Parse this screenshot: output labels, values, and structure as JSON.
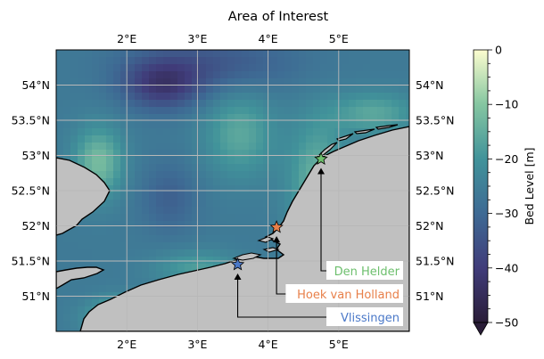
{
  "title": "Area of Interest",
  "lon_ticks": [
    {
      "v": 2,
      "label": "2°E"
    },
    {
      "v": 3,
      "label": "3°E"
    },
    {
      "v": 4,
      "label": "4°E"
    },
    {
      "v": 5,
      "label": "5°E"
    }
  ],
  "lat_ticks": [
    {
      "v": 51,
      "label": "51°N"
    },
    {
      "v": 51.5,
      "label": "51.5°N"
    },
    {
      "v": 52,
      "label": "52°N"
    },
    {
      "v": 52.5,
      "label": "52.5°N"
    },
    {
      "v": 53,
      "label": "53°N"
    },
    {
      "v": 53.5,
      "label": "53.5°N"
    },
    {
      "v": 54,
      "label": "54°N"
    }
  ],
  "colorbar": {
    "label": "Bed Level [m]",
    "ticks": [
      {
        "v": 0,
        "label": "0"
      },
      {
        "v": -10,
        "label": "−10"
      },
      {
        "v": -20,
        "label": "−20"
      },
      {
        "v": -30,
        "label": "−30"
      },
      {
        "v": -40,
        "label": "−40"
      },
      {
        "v": -50,
        "label": "−50"
      }
    ],
    "range": [
      -50,
      0
    ],
    "extend": "min"
  },
  "chart_data": {
    "type": "heatmap",
    "title": "Area of Interest",
    "xlim": [
      1.0,
      6.0
    ],
    "ylim": [
      50.5,
      54.5
    ],
    "grid": true,
    "land_color": "#c0c0c0",
    "locations": [
      {
        "name": "Den Helder",
        "lon": 4.75,
        "lat": 52.95,
        "color": "#6dbf6d"
      },
      {
        "name": "Hoek van Holland",
        "lon": 4.12,
        "lat": 51.98,
        "color": "#e8804a"
      },
      {
        "name": "Vlissingen",
        "lon": 3.57,
        "lat": 51.45,
        "color": "#4a78c8"
      }
    ]
  }
}
